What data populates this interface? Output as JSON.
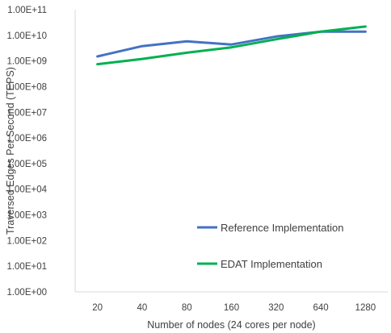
{
  "chart_data": {
    "type": "line",
    "title": "",
    "xlabel": "Number of nodes (24 cores per node)",
    "ylabel": "Traversed Edges Per Second (TEPS)",
    "y_scale": "log",
    "ylim": [
      1,
      100000000000
    ],
    "y_ticks": [
      1,
      10,
      100,
      1000,
      10000,
      100000,
      1000000,
      10000000,
      100000000,
      1000000000,
      10000000000,
      100000000000
    ],
    "y_tick_labels": [
      "1.00E+00",
      "1.00E+01",
      "1.00E+02",
      "1.00E+03",
      "1.00E+04",
      "1.00E+05",
      "1.00E+06",
      "1.00E+07",
      "1.00E+08",
      "1.00E+09",
      "1.00E+10",
      "1.00E+11"
    ],
    "categories": [
      "20",
      "40",
      "80",
      "160",
      "320",
      "640",
      "1280"
    ],
    "series": [
      {
        "name": "Reference Implementation",
        "color": "#4472C4",
        "values": [
          1500000000,
          3800000000,
          5800000000,
          4400000000,
          9000000000,
          14000000000,
          14000000000
        ]
      },
      {
        "name": "EDAT Implementation",
        "color": "#00B050",
        "values": [
          750000000,
          1200000000,
          2100000000,
          3400000000,
          7000000000,
          14000000000,
          22000000000
        ]
      }
    ],
    "grid": false,
    "legend": "bottom-right"
  }
}
